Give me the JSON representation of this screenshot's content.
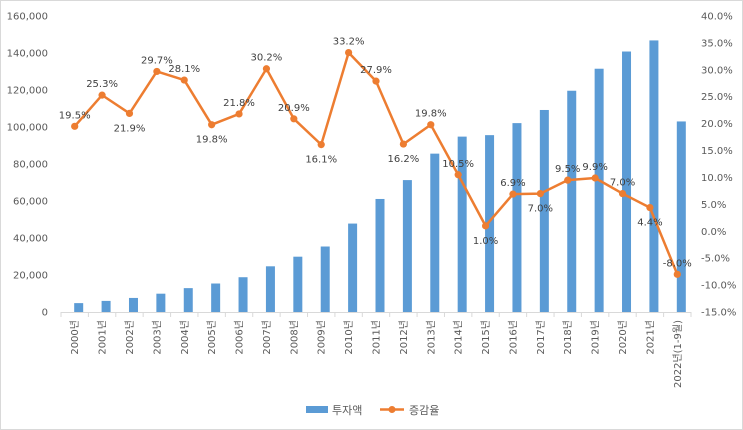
{
  "chart_data": {
    "type": "bar",
    "title": "",
    "xlabel": "",
    "ylabel": "",
    "categories": [
      "2000년",
      "2001년",
      "2002년",
      "2003년",
      "2004년",
      "2005년",
      "2006년",
      "2007년",
      "2008년",
      "2009년",
      "2010년",
      "2011년",
      "2012년",
      "2013년",
      "2014년",
      "2015년",
      "2016년",
      "2017년",
      "2018년",
      "2019년",
      "2020년",
      "2021년",
      "2022년(1-9월)"
    ],
    "series": [
      {
        "name": "투자액",
        "type": "bar",
        "axis": "left",
        "color": "#5b9bd5",
        "values": [
          4800,
          6000,
          7600,
          9900,
          12900,
          15400,
          18800,
          24700,
          29900,
          35400,
          47800,
          61100,
          71300,
          85600,
          94800,
          95600,
          102100,
          109200,
          119600,
          131500,
          140800,
          146800,
          103000
        ]
      },
      {
        "name": "증감율",
        "type": "line",
        "axis": "right",
        "color": "#ed7d31",
        "values": [
          19.5,
          25.3,
          21.9,
          29.7,
          28.1,
          19.8,
          21.8,
          30.2,
          20.9,
          16.1,
          33.2,
          27.9,
          16.2,
          19.8,
          10.5,
          1.0,
          6.9,
          7.0,
          9.5,
          9.9,
          7.0,
          4.4,
          -8.0
        ],
        "labels": [
          "19.5%",
          "25.3%",
          "21.9%",
          "29.7%",
          "28.1%",
          "19.8%",
          "21.8%",
          "30.2%",
          "20.9%",
          "16.1%",
          "33.2%",
          "27.9%",
          "16.2%",
          "19.8%",
          "10.5%",
          "1.0%",
          "6.9%",
          "7.0%",
          "9.5%",
          "9.9%",
          "7.0%",
          "4.4%",
          "-8.0%"
        ]
      }
    ],
    "left_axis": {
      "ylim": [
        0,
        160000
      ],
      "ticks": [
        0,
        20000,
        40000,
        60000,
        80000,
        100000,
        120000,
        140000,
        160000
      ],
      "tick_labels": [
        "0",
        "20,000",
        "40,000",
        "60,000",
        "80,000",
        "100,000",
        "120,000",
        "140,000",
        "160,000"
      ]
    },
    "right_axis": {
      "ylim": [
        -15,
        40
      ],
      "ticks": [
        -15,
        -10,
        -5,
        0,
        5,
        10,
        15,
        20,
        25,
        30,
        35,
        40
      ],
      "tick_labels": [
        "-15.0%",
        "-10.0%",
        "-5.0%",
        "0.0%",
        "5.0%",
        "10.0%",
        "15.0%",
        "20.0%",
        "25.0%",
        "30.0%",
        "35.0%",
        "40.0%"
      ]
    },
    "grid": false,
    "legend": {
      "position": "bottom",
      "entries": [
        "투자액",
        "증감율"
      ]
    }
  }
}
